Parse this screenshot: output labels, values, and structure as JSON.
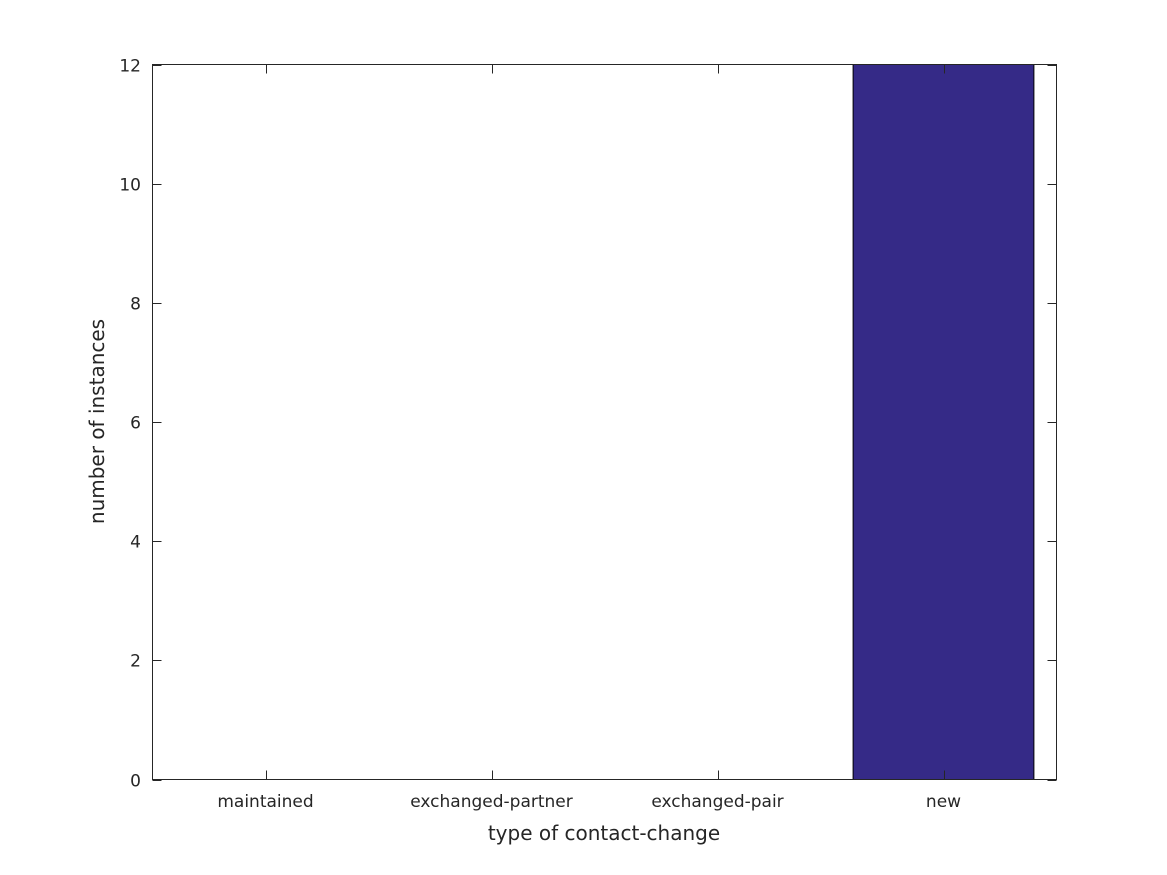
{
  "chart_data": {
    "type": "bar",
    "title": "",
    "xlabel": "type of contact-change",
    "ylabel": "number of instances",
    "categories": [
      "maintained",
      "exchanged-partner",
      "exchanged-pair",
      "new"
    ],
    "values": [
      0,
      0,
      0,
      12
    ],
    "ylim": [
      0,
      12
    ],
    "yticks": [
      0,
      2,
      4,
      6,
      8,
      10,
      12
    ],
    "grid": false,
    "bar_color": "#352a87",
    "axis_color": "#262626"
  }
}
